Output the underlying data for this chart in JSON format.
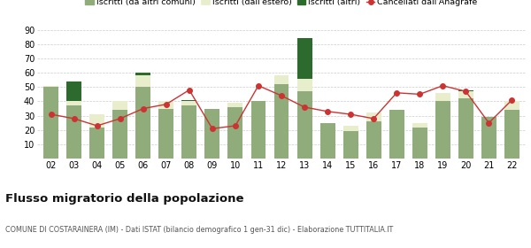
{
  "years": [
    "02",
    "03",
    "04",
    "05",
    "06",
    "07",
    "08",
    "09",
    "10",
    "11",
    "12",
    "13",
    "14",
    "15",
    "16",
    "17",
    "18",
    "19",
    "20",
    "21",
    "22"
  ],
  "iscritti_comuni": [
    50,
    37,
    22,
    34,
    50,
    35,
    37,
    35,
    36,
    40,
    52,
    47,
    25,
    19,
    26,
    34,
    22,
    40,
    42,
    29,
    34
  ],
  "iscritti_estero": [
    1,
    3,
    9,
    6,
    8,
    5,
    3,
    0,
    3,
    0,
    6,
    9,
    0,
    4,
    6,
    0,
    3,
    6,
    5,
    0,
    6
  ],
  "iscritti_altri": [
    0,
    14,
    0,
    0,
    2,
    0,
    1,
    0,
    0,
    0,
    0,
    28,
    0,
    0,
    0,
    0,
    0,
    0,
    1,
    0,
    0
  ],
  "cancellati": [
    31,
    28,
    23,
    28,
    35,
    38,
    48,
    21,
    23,
    51,
    44,
    36,
    33,
    31,
    28,
    46,
    45,
    51,
    47,
    25,
    41
  ],
  "color_comuni": "#8fac7a",
  "color_estero": "#e8edcc",
  "color_altri": "#2d6a2d",
  "color_cancellati": "#cc3333",
  "color_grid": "#cccccc",
  "ylim": [
    0,
    90
  ],
  "yticks": [
    0,
    10,
    20,
    30,
    40,
    50,
    60,
    70,
    80,
    90
  ],
  "title": "Flusso migratorio della popolazione",
  "subtitle": "COMUNE DI COSTARAINERA (IM) - Dati ISTAT (bilancio demografico 1 gen-31 dic) - Elaborazione TUTTITALIA.IT",
  "legend_labels": [
    "Iscritti (da altri comuni)",
    "Iscritti (dall'estero)",
    "Iscritti (altri)",
    "Cancellati dall'Anagrafe"
  ],
  "bg_color": "#ffffff"
}
